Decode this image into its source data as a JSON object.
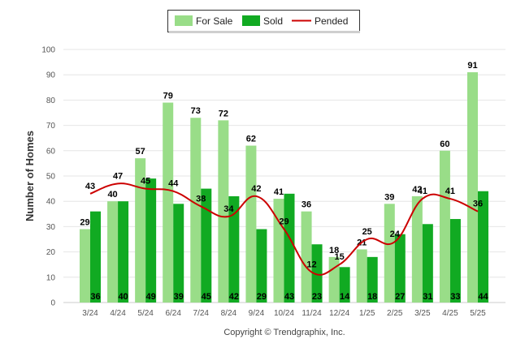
{
  "chart_data": {
    "type": "bar",
    "categories": [
      "3/24",
      "4/24",
      "5/24",
      "6/24",
      "7/24",
      "8/24",
      "9/24",
      "10/24",
      "11/24",
      "12/24",
      "1/25",
      "2/25",
      "3/25",
      "4/25",
      "5/25"
    ],
    "series": [
      {
        "name": "For Sale",
        "type": "bar",
        "color": "#99dd88",
        "values": [
          29,
          40,
          57,
          79,
          73,
          72,
          62,
          41,
          36,
          18,
          21,
          39,
          42,
          60,
          91
        ]
      },
      {
        "name": "Sold",
        "type": "bar",
        "color": "#11aa22",
        "values": [
          36,
          40,
          49,
          39,
          45,
          42,
          29,
          43,
          23,
          14,
          18,
          27,
          31,
          33,
          44
        ]
      },
      {
        "name": "Pended",
        "type": "line",
        "color": "#cc0000",
        "values": [
          43,
          47,
          45,
          44,
          38,
          34,
          42,
          29,
          12,
          15,
          25,
          24,
          41,
          41,
          36
        ]
      }
    ],
    "ylabel": "Number of Homes",
    "xlabel": "",
    "ylim": [
      0,
      100
    ],
    "yticks": [
      0,
      10,
      20,
      30,
      40,
      50,
      60,
      70,
      80,
      90,
      100
    ],
    "grid": true,
    "legend_position": "top-center"
  },
  "footer": {
    "copyright": "Copyright © Trendgraphix, Inc."
  }
}
